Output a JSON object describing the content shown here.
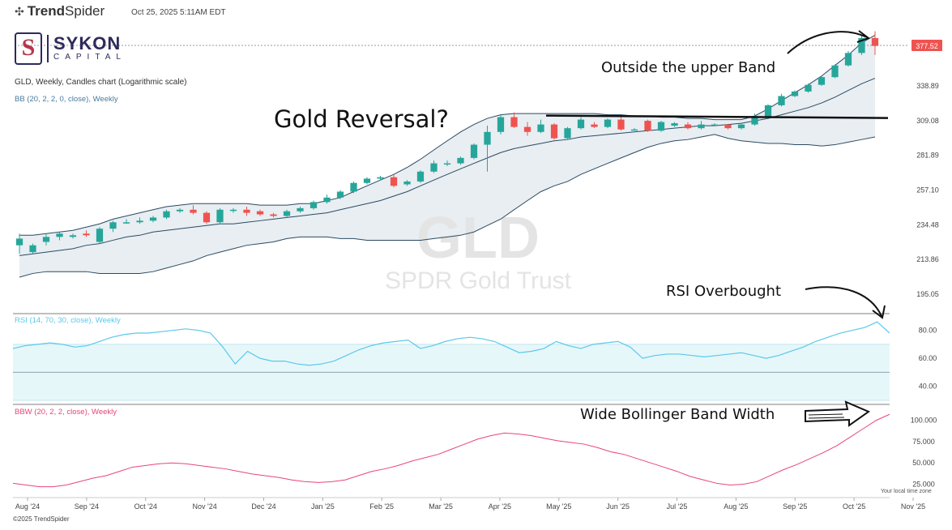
{
  "header": {
    "brand_prefix": "Trend",
    "brand_suffix": "Spider",
    "timestamp": "Oct 25, 2025 5:11AM EDT"
  },
  "logo": {
    "name": "SYKON",
    "sub": "CAPITAL",
    "mark": "S"
  },
  "symbol_line": "GLD, Weekly, Candles chart (Logarithmic scale)",
  "watermark": {
    "ticker": "GLD",
    "name": "SPDR Gold Trust"
  },
  "annotations": {
    "title": "Gold Reversal?",
    "upper_band": "Outside the upper Band",
    "rsi": "RSI Overbought",
    "bbw": "Wide Bollinger Band Width"
  },
  "footer": {
    "copyright": "©2025 TrendSpider",
    "local_time": "Your local time zone"
  },
  "colors": {
    "up": "#26a69a",
    "down": "#ef5350",
    "band_fill": "#e8eef2",
    "band_line": "#2c4a63",
    "rsi_line": "#5bc8ea",
    "rsi_fill": "#e6f7fa",
    "bbw_line": "#e8457a",
    "price_tag": "#ef5350"
  },
  "chart_data": [
    {
      "type": "candlestick",
      "name": "GLD",
      "indicator_label": "BB (20, 2, 2, 0, close), Weekly",
      "scale": "log",
      "ylim": [
        190,
        395
      ],
      "y_ticks": [
        195.05,
        213.86,
        234.48,
        257.1,
        281.89,
        309.08,
        338.89
      ],
      "last_price": "377.52",
      "resistance_level": 312,
      "x_labels": [
        "Aug '24",
        "Sep '24",
        "Oct '24",
        "Nov '24",
        "Dec '24",
        "Jan '25",
        "Feb '25",
        "Mar '25",
        "Apr '25",
        "May '25",
        "Jun '25",
        "Jul '25",
        "Aug '25",
        "Sep '25",
        "Oct '25",
        "Nov '25"
      ],
      "candles": [
        [
          222,
          226,
          217,
          229
        ],
        [
          218,
          222,
          217,
          223
        ],
        [
          224,
          227,
          222,
          229
        ],
        [
          227,
          229,
          225,
          230
        ],
        [
          227,
          228,
          226,
          229
        ],
        [
          229,
          228,
          227,
          231
        ],
        [
          224,
          232,
          223,
          233
        ],
        [
          232,
          236,
          230,
          237
        ],
        [
          236,
          236,
          235,
          238
        ],
        [
          236,
          237,
          235,
          239
        ],
        [
          237,
          239,
          236,
          240
        ],
        [
          239,
          243,
          238,
          244
        ],
        [
          243,
          244,
          242,
          245
        ],
        [
          244,
          242,
          241,
          247
        ],
        [
          242,
          236,
          235,
          243
        ],
        [
          236,
          244,
          235,
          245
        ],
        [
          244,
          244,
          242,
          245
        ],
        [
          244,
          242,
          240,
          246
        ],
        [
          243,
          241,
          240,
          244
        ],
        [
          241,
          240,
          239,
          242
        ],
        [
          240,
          243,
          239,
          244
        ],
        [
          243,
          245,
          242,
          246
        ],
        [
          245,
          249,
          244,
          250
        ],
        [
          249,
          252,
          248,
          254
        ],
        [
          252,
          256,
          251,
          257
        ],
        [
          256,
          262,
          255,
          263
        ],
        [
          262,
          265,
          261,
          266
        ],
        [
          265,
          266,
          264,
          267
        ],
        [
          266,
          260,
          259,
          268
        ],
        [
          261,
          263,
          260,
          264
        ],
        [
          263,
          270,
          262,
          271
        ],
        [
          270,
          276,
          269,
          278
        ],
        [
          276,
          276,
          274,
          278
        ],
        [
          276,
          280,
          275,
          281
        ],
        [
          280,
          290,
          279,
          291
        ],
        [
          290,
          300,
          270,
          305
        ],
        [
          300,
          312,
          298,
          314
        ],
        [
          312,
          304,
          303,
          316
        ],
        [
          304,
          300,
          297,
          308
        ],
        [
          300,
          306,
          299,
          310
        ],
        [
          306,
          295,
          294,
          307
        ],
        [
          295,
          303,
          294,
          304
        ],
        [
          303,
          310,
          302,
          312
        ],
        [
          306,
          304,
          303,
          308
        ],
        [
          304,
          310,
          303,
          311
        ],
        [
          310,
          302,
          301,
          313
        ],
        [
          302,
          302,
          301,
          303
        ],
        [
          309,
          301,
          300,
          310
        ],
        [
          301,
          308,
          300,
          309
        ],
        [
          305,
          307,
          304,
          308
        ],
        [
          306,
          303,
          302,
          308
        ],
        [
          303,
          306,
          302,
          309
        ],
        [
          306,
          306,
          305,
          307
        ],
        [
          306,
          303,
          302,
          306
        ],
        [
          303,
          306,
          302,
          307
        ],
        [
          306,
          312,
          305,
          315
        ],
        [
          312,
          322,
          311,
          323
        ],
        [
          322,
          330,
          321,
          332
        ],
        [
          330,
          334,
          329,
          335
        ],
        [
          334,
          340,
          333,
          341
        ],
        [
          340,
          347,
          339,
          348
        ],
        [
          347,
          358,
          346,
          359
        ],
        [
          358,
          370,
          357,
          372
        ],
        [
          370,
          385,
          368,
          388
        ],
        [
          385,
          377,
          368,
          392
        ]
      ],
      "bb_upper": [
        228,
        228,
        229,
        230,
        231,
        233,
        235,
        238,
        240,
        242,
        244,
        246,
        247,
        248,
        248,
        248,
        248,
        248,
        247,
        247,
        247,
        248,
        248,
        250,
        252,
        256,
        260,
        264,
        268,
        273,
        279,
        286,
        293,
        300,
        306,
        311,
        314,
        315,
        315,
        315,
        315,
        315,
        315,
        315,
        314,
        314,
        313,
        313,
        312,
        312,
        311,
        311,
        310,
        310,
        310,
        313,
        319,
        326,
        333,
        340,
        348,
        358,
        368,
        380,
        388
      ],
      "bb_mid": [
        216,
        217,
        218,
        219,
        220,
        222,
        223,
        225,
        227,
        228,
        230,
        231,
        232,
        233,
        234,
        235,
        235,
        236,
        237,
        238,
        239,
        240,
        241,
        242,
        244,
        246,
        248,
        250,
        253,
        256,
        260,
        264,
        268,
        272,
        276,
        280,
        284,
        287,
        289,
        291,
        293,
        294,
        296,
        297,
        298,
        299,
        300,
        301,
        302,
        303,
        304,
        305,
        305,
        306,
        307,
        309,
        311,
        314,
        317,
        320,
        324,
        329,
        335,
        341,
        346
      ],
      "bb_lower": [
        204,
        206,
        207,
        207,
        207,
        207,
        206,
        206,
        206,
        206,
        207,
        209,
        211,
        213,
        216,
        218,
        220,
        222,
        223,
        224,
        226,
        227,
        227,
        227,
        226,
        226,
        225,
        225,
        225,
        225,
        225,
        226,
        227,
        228,
        230,
        234,
        238,
        244,
        250,
        256,
        260,
        263,
        268,
        272,
        276,
        280,
        284,
        288,
        291,
        293,
        294,
        296,
        298,
        295,
        293,
        292,
        291,
        291,
        290,
        290,
        289,
        290,
        292,
        294,
        296
      ]
    },
    {
      "type": "line",
      "name": "RSI",
      "indicator_label": "RSI (14, 70, 30, close), Weekly",
      "ylim": [
        30,
        89
      ],
      "y_ticks": [
        80.0,
        60.0,
        40.0
      ],
      "bands": [
        30,
        50,
        70
      ],
      "values": [
        67,
        69,
        70,
        71,
        70,
        68,
        69,
        72,
        75,
        77,
        78,
        78,
        79,
        80,
        81,
        80,
        78,
        68,
        56,
        65,
        60,
        58,
        58,
        56,
        55,
        56,
        58,
        62,
        66,
        69,
        71,
        72,
        73,
        67,
        69,
        72,
        74,
        75,
        74,
        72,
        68,
        64,
        65,
        67,
        72,
        69,
        67,
        70,
        71,
        72,
        68,
        60,
        62,
        63,
        63,
        62,
        61,
        62,
        63,
        64,
        62,
        60,
        62,
        65,
        68,
        72,
        75,
        78,
        80,
        82,
        86,
        78
      ]
    },
    {
      "type": "line",
      "name": "BBW",
      "indicator_label": "BBW (20, 2, 2, close), Weekly",
      "ylim": [
        15,
        112
      ],
      "y_ticks": [
        100.0,
        75.0,
        50.0,
        25.0
      ],
      "values": [
        26,
        24,
        22,
        22,
        24,
        28,
        32,
        35,
        40,
        45,
        47,
        49,
        50,
        49,
        47,
        45,
        43,
        40,
        37,
        35,
        33,
        30,
        28,
        27,
        28,
        30,
        35,
        40,
        43,
        47,
        52,
        56,
        60,
        66,
        72,
        78,
        82,
        85,
        84,
        82,
        79,
        76,
        74,
        72,
        68,
        63,
        60,
        55,
        50,
        45,
        40,
        34,
        30,
        26,
        24,
        25,
        28,
        35,
        42,
        48,
        55,
        62,
        70,
        80,
        90,
        100,
        107
      ]
    }
  ]
}
